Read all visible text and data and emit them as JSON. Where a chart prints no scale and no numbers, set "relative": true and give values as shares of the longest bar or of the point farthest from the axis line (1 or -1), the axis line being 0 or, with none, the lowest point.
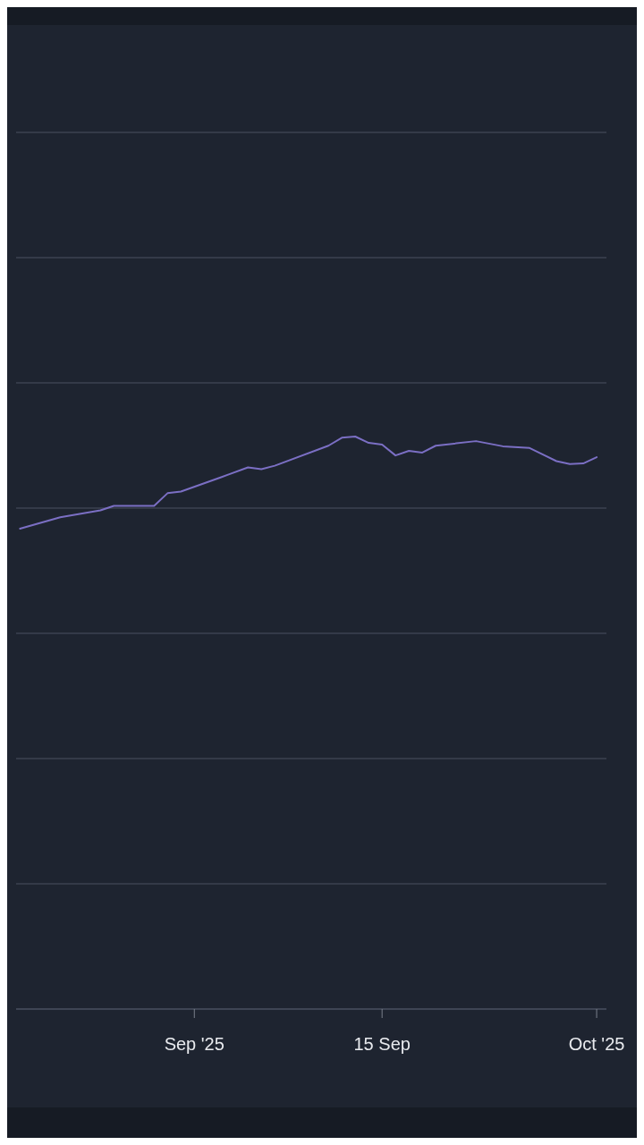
{
  "chart_data": {
    "type": "line",
    "relative": true,
    "grid": "y",
    "x": [
      "2025-08-19",
      "2025-08-22",
      "2025-08-25",
      "2025-08-26",
      "2025-08-29",
      "2025-08-30",
      "2025-08-31",
      "2025-09-03",
      "2025-09-05",
      "2025-09-06",
      "2025-09-07",
      "2025-09-11",
      "2025-09-12",
      "2025-09-13",
      "2025-09-14",
      "2025-09-15",
      "2025-09-16",
      "2025-09-17",
      "2025-09-18",
      "2025-09-19",
      "2025-09-22",
      "2025-09-24",
      "2025-09-26",
      "2025-09-28",
      "2025-09-29",
      "2025-09-30",
      "2025-10-01"
    ],
    "xlim": [
      "2025-08-18T17:00",
      "2025-10-01T17:30"
    ],
    "xticks": [
      {
        "value": "2025-09-01",
        "label": "Sep '25"
      },
      {
        "value": "2025-09-15",
        "label": "15 Sep"
      },
      {
        "value": "2025-10-01",
        "label": "Oct '25"
      }
    ],
    "series": [
      {
        "color": "#7b6fc4",
        "values": [
          0.839,
          0.859,
          0.871,
          0.879,
          0.879,
          0.901,
          0.904,
          0.929,
          0.946,
          0.943,
          0.949,
          0.984,
          0.998,
          1.0,
          0.989,
          0.986,
          0.967,
          0.975,
          0.972,
          0.984,
          0.992,
          0.983,
          0.98,
          0.957,
          0.952,
          0.953,
          0.964
        ]
      }
    ]
  }
}
